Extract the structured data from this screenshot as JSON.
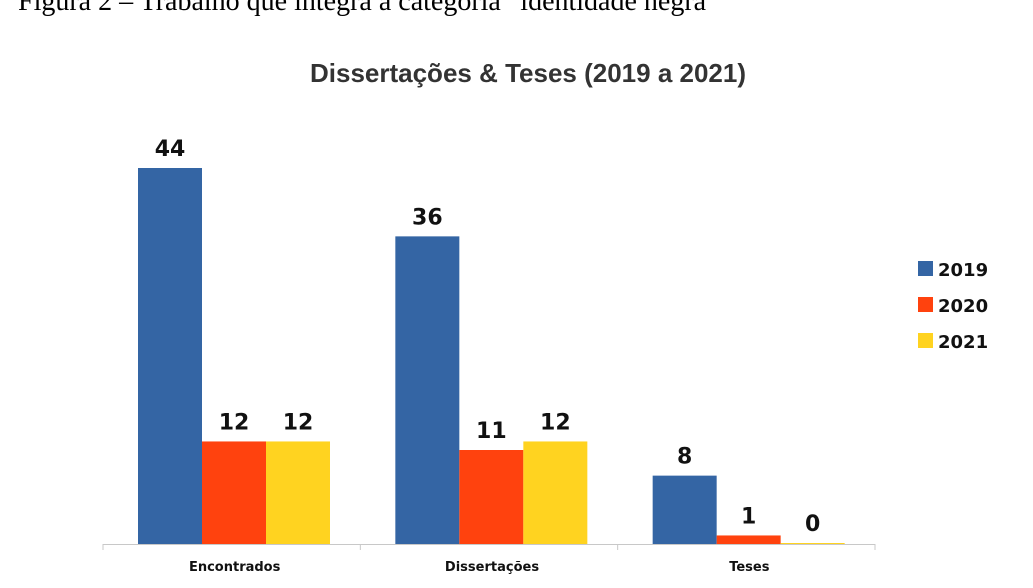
{
  "page": {
    "caption": "Figura 2 – Trabalho que integra a categoria “identidade negra”"
  },
  "chart_data": {
    "type": "bar",
    "title": "Dissertações & Teses (2019 a 2021)",
    "categories": [
      "Encontrados",
      "Dissertações",
      "Teses"
    ],
    "series": [
      {
        "name": "2019",
        "values": [
          44,
          36,
          8
        ],
        "color": "#3465A4"
      },
      {
        "name": "2020",
        "values": [
          12,
          11,
          1
        ],
        "color": "#FF420E"
      },
      {
        "name": "2021",
        "values": [
          12,
          12,
          0
        ],
        "color": "#FFD320"
      }
    ],
    "ylim": [
      0,
      44
    ],
    "grid": false,
    "legend_position": "right",
    "data_labels": true
  }
}
